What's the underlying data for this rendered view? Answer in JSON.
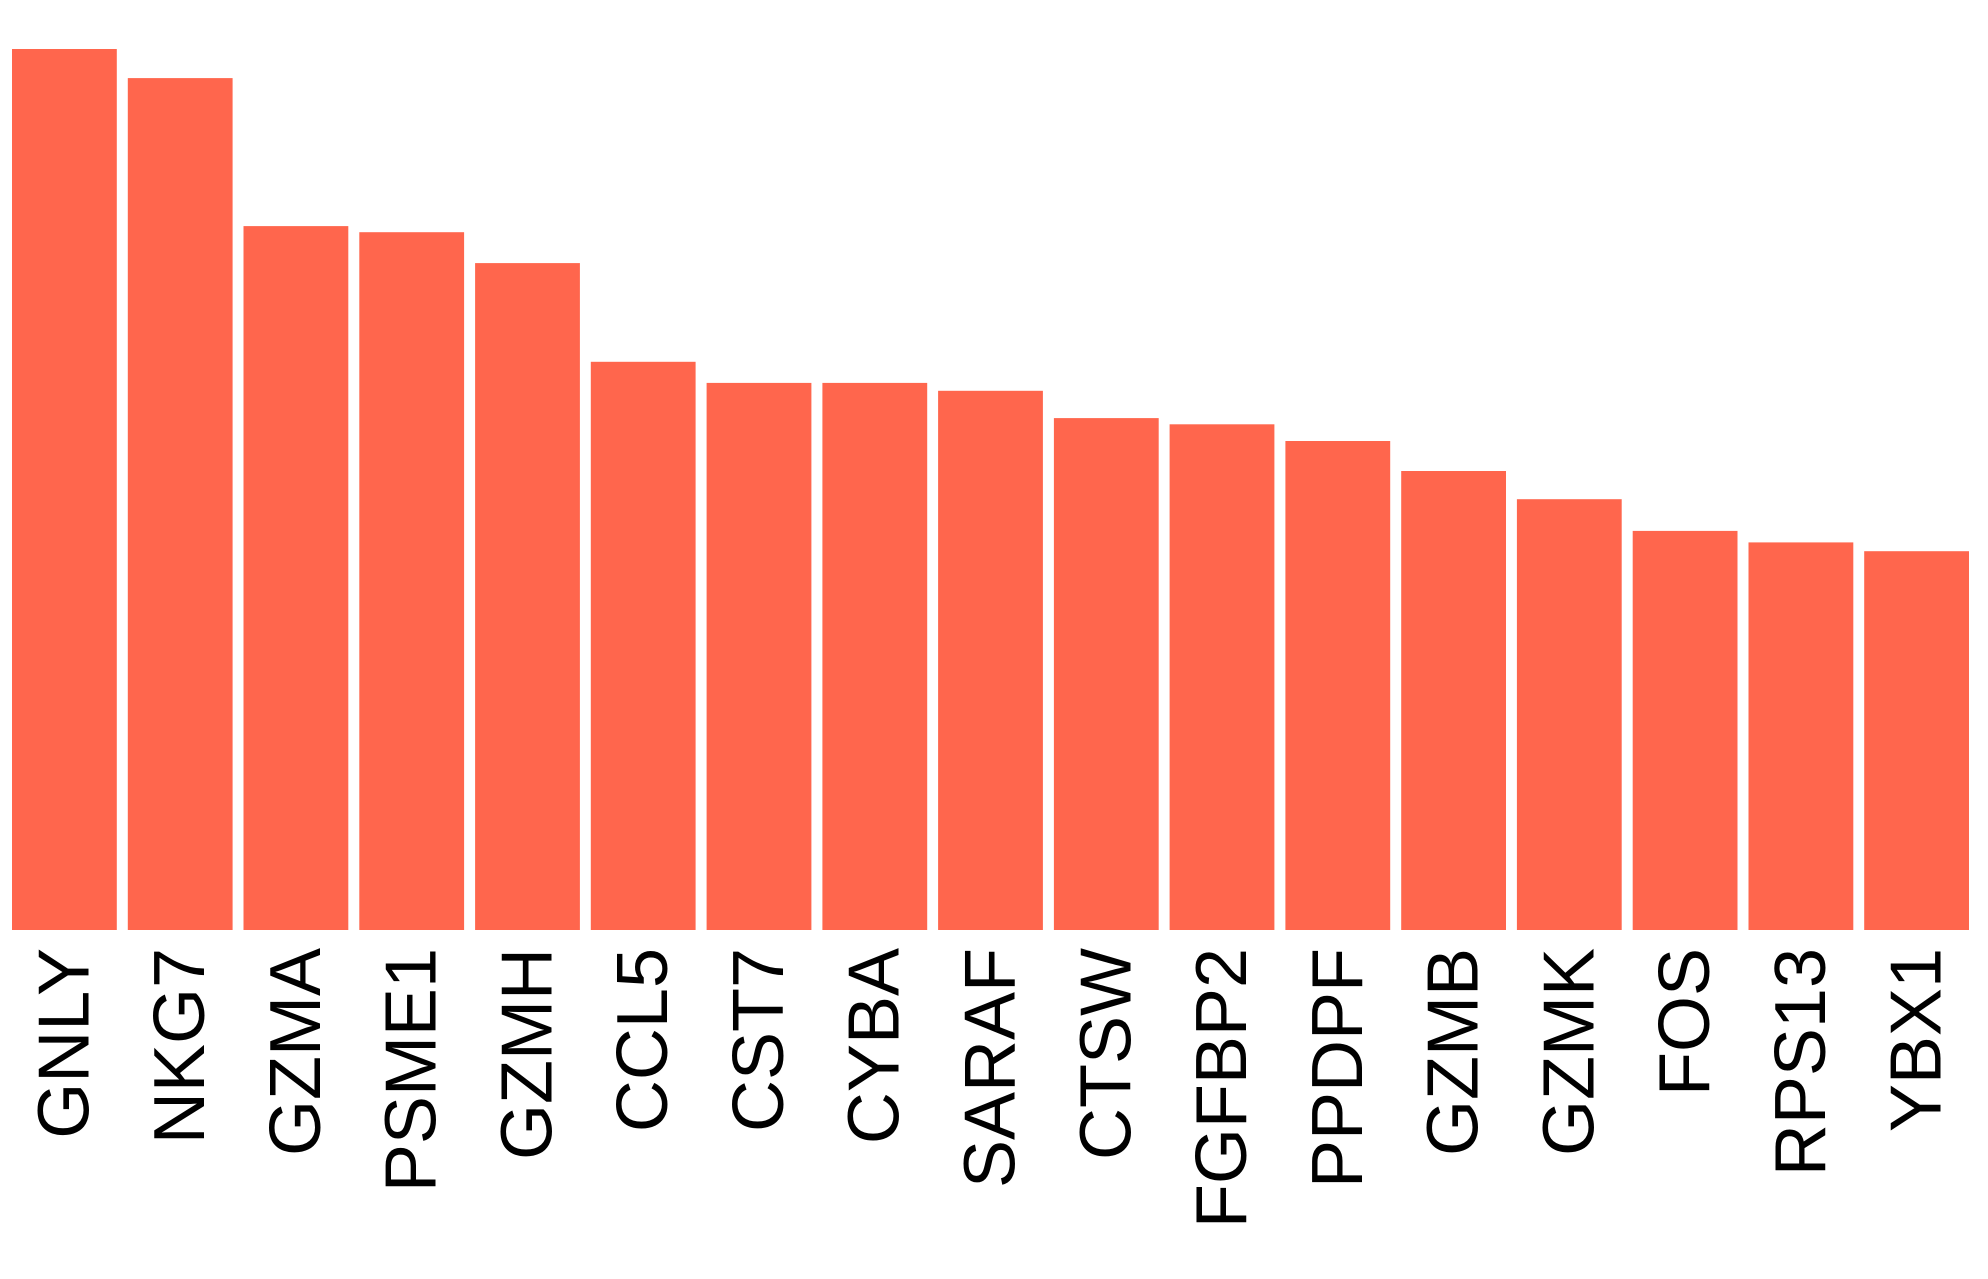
{
  "chart_data": {
    "type": "bar",
    "title": "",
    "xlabel": "",
    "ylabel": "",
    "categories": [
      "GNLY",
      "NKG7",
      "GZMA",
      "PSME1",
      "GZMH",
      "CCL5",
      "CST7",
      "CYBA",
      "SARAF",
      "CTSW",
      "FGFBP2",
      "PPDPF",
      "GZMB",
      "GZMK",
      "FOS",
      "RPS13",
      "YBX1"
    ],
    "values": [
      1.0,
      0.967,
      0.799,
      0.792,
      0.757,
      0.645,
      0.621,
      0.621,
      0.612,
      0.581,
      0.574,
      0.555,
      0.521,
      0.489,
      0.453,
      0.44,
      0.43
    ],
    "ylim": [
      0,
      1.0
    ],
    "grid": false,
    "legend": "none",
    "bar_color": "#FF664D"
  }
}
